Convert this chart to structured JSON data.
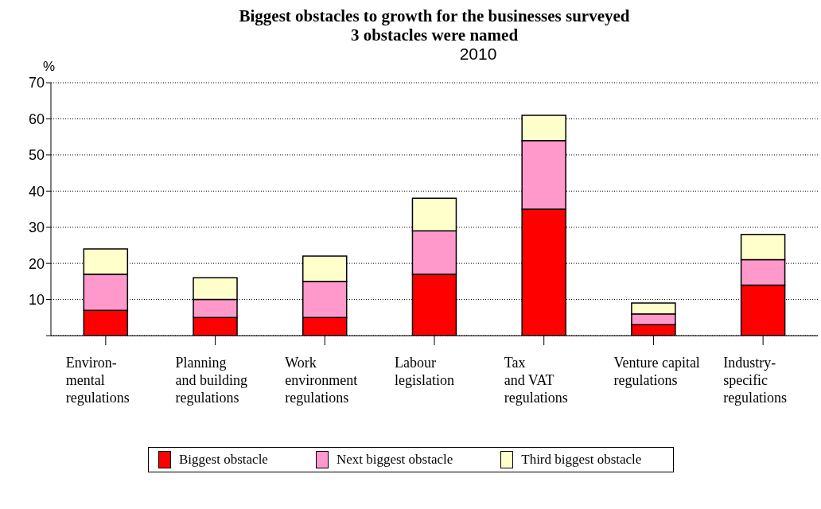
{
  "chart_data": {
    "type": "bar",
    "title": "Biggest obstacles to growth for the businesses surveyed\n3 obstacles were named",
    "subtitle": "2010",
    "ylabel": "%",
    "categories": [
      "Environ-\nmental\nregulations",
      "Planning\nand building\nregulations",
      "Work\nenvironment\nregulations",
      "Labour\nlegislation",
      "Tax\nand VAT\nregulations",
      "Venture capital\nregulations",
      "Industry-\nspecific\nregulations"
    ],
    "series": [
      {
        "name": "Biggest obstacle",
        "color": "#ff0000",
        "values": [
          7,
          5,
          5,
          17,
          35,
          3,
          14
        ]
      },
      {
        "name": "Next biggest obstacle",
        "color": "#ff99cc",
        "values": [
          10,
          5,
          10,
          12,
          19,
          3,
          7
        ]
      },
      {
        "name": "Third biggest obstacle",
        "color": "#ffffcc",
        "values": [
          7,
          6,
          7,
          9,
          7,
          3,
          7
        ]
      }
    ],
    "stacked": true,
    "ylim": [
      0,
      70
    ],
    "yticks": [
      {
        "value": 0,
        "label": null
      },
      10,
      20,
      30,
      40,
      50,
      60,
      70
    ],
    "grid": "y",
    "legend": "bottom"
  }
}
